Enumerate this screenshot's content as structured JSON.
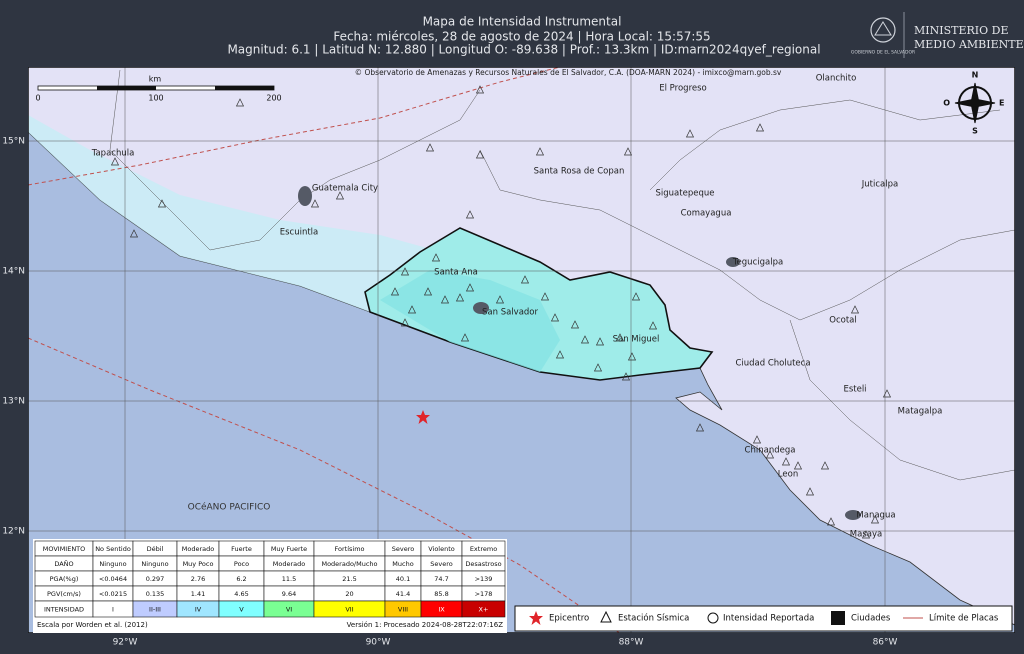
{
  "header": {
    "title": "Mapa de Intensidad Instrumental",
    "date": "Fecha: miércoles, 28 de agosto de 2024 | Hora Local: 15:57:55",
    "params": "Magnitud: 6.1 | Latitud N: 12.880 | Longitud O: -89.638 | Prof.: 13.3km | ID:marn2024qyef_regional"
  },
  "logo": {
    "gov": "GOBIERNO DE EL SALVADOR",
    "ministry": [
      "MINISTERIO DE",
      "MEDIO AMBIENTE"
    ]
  },
  "map": {
    "credit": "© Observatorio de Amenazas y Recursos Naturales de El Salvador, C.A. (DOA-MARN 2024) - imixco@marn.gob.sv",
    "scale": {
      "unit": "km",
      "ticks": [
        "0",
        "100",
        "200"
      ]
    },
    "compass": {
      "n": "N",
      "s": "S",
      "e": "E",
      "w": "O"
    },
    "lat_labels": [
      "15°N",
      "14°N",
      "13°N",
      "12°N"
    ],
    "lon_labels": [
      "92°W",
      "90°W",
      "88°W",
      "86°W"
    ],
    "cities": [
      "Tapachula",
      "Guatemala City",
      "Escuintla",
      "Santa Ana",
      "San Salvador",
      "San Miguel",
      "Santa Rosa de Copan",
      "El Progreso",
      "Olanchito",
      "Siguatepeque",
      "Comayagua",
      "Juticalpa",
      "Tegucigalpa",
      "Ocotal",
      "Ciudad Choluteca",
      "Esteli",
      "Matagalpa",
      "Chinandega",
      "Leon",
      "Managua",
      "Masaya"
    ],
    "ocean": "OCéANO PACIFICO"
  },
  "table": {
    "rows": [
      [
        "MOVIMIENTO",
        "No Sentido",
        "Débil",
        "Moderado",
        "Fuerte",
        "Muy Fuerte",
        "Fortísimo",
        "Severo",
        "Violento",
        "Extremo"
      ],
      [
        "DAÑO",
        "Ninguno",
        "Ninguno",
        "Muy Poco",
        "Poco",
        "Moderado",
        "Moderado/Mucho",
        "Mucho",
        "Severo",
        "Desastroso"
      ],
      [
        "PGA(%g)",
        "<0.0464",
        "0.297",
        "2.76",
        "6.2",
        "11.5",
        "21.5",
        "40.1",
        "74.7",
        ">139"
      ],
      [
        "PGV(cm/s)",
        "<0.0215",
        "0.135",
        "1.41",
        "4.65",
        "9.64",
        "20",
        "41.4",
        "85.8",
        ">178"
      ],
      [
        "INTENSIDAD",
        "I",
        "II-III",
        "IV",
        "V",
        "VI",
        "VII",
        "VIII",
        "IX",
        "X+"
      ]
    ]
  },
  "footer": {
    "left": "Escala por Worden et al. (2012)",
    "right": "Versión 1: Procesado 2024-08-28T22:07:16Z"
  },
  "legend": [
    "Epicentro",
    "Estación Sísmica",
    "Intensidad Reportada",
    "Ciudades",
    "Límite de Placas"
  ]
}
